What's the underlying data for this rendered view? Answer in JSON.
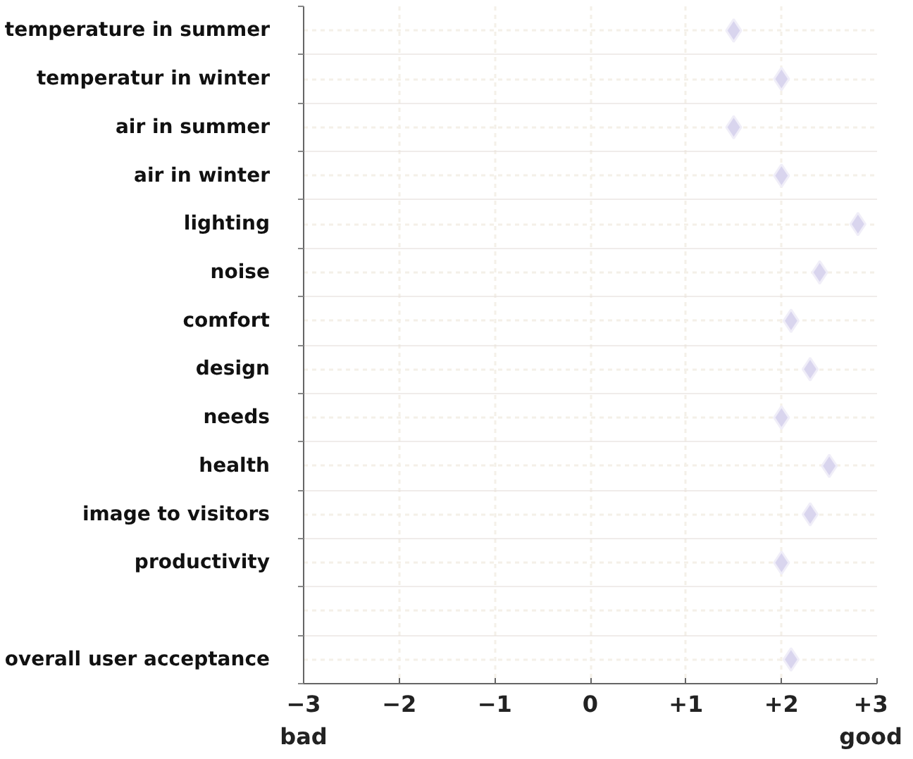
{
  "chart_data": {
    "type": "scatter",
    "orientation": "horizontal",
    "categories": [
      "temperature in summer",
      "temperatur in winter",
      "air in summer",
      "air in winter",
      "lighting",
      "noise",
      "comfort",
      "design",
      "needs",
      "health",
      "image to visitors",
      "productivity",
      null,
      "overall user acceptance"
    ],
    "values": [
      1.5,
      2.0,
      1.5,
      2.0,
      2.8,
      2.4,
      2.1,
      2.3,
      2.0,
      2.5,
      2.3,
      2.0,
      null,
      2.1
    ],
    "color": "#d9d5ee",
    "marker": "diamond",
    "xlim": [
      -3,
      3
    ],
    "xticks": [
      {
        "value": -3,
        "label": "−3\nbad"
      },
      {
        "value": -2,
        "label": "−2"
      },
      {
        "value": -1,
        "label": "−1"
      },
      0,
      {
        "value": 1,
        "label": "+1"
      },
      {
        "value": 2,
        "label": "+2"
      },
      {
        "value": 3,
        "label": "+3\ngood"
      }
    ],
    "grid": true
  }
}
